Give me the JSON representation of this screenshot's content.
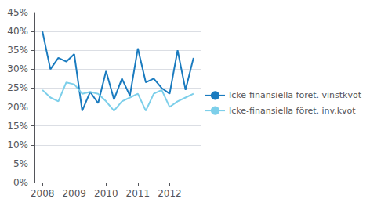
{
  "chart_data": {
    "type": "line",
    "x": [
      2008.0,
      2008.25,
      2008.5,
      2008.75,
      2009.0,
      2009.25,
      2009.5,
      2009.75,
      2010.0,
      2010.25,
      2010.5,
      2010.75,
      2011.0,
      2011.25,
      2011.5,
      2011.75,
      2012.0,
      2012.25,
      2012.5,
      2012.75
    ],
    "series": [
      {
        "name": "Icke-finansiella föret. vinstkvot",
        "color": "#1a7bbf",
        "values": [
          0.4,
          0.3,
          0.33,
          0.32,
          0.34,
          0.19,
          0.24,
          0.21,
          0.295,
          0.22,
          0.275,
          0.23,
          0.355,
          0.265,
          0.275,
          0.25,
          0.235,
          0.35,
          0.245,
          0.33
        ]
      },
      {
        "name": "Icke-finansiella föret. inv.kvot",
        "color": "#7dcfea",
        "values": [
          0.245,
          0.225,
          0.215,
          0.265,
          0.26,
          0.235,
          0.24,
          0.235,
          0.215,
          0.19,
          0.215,
          0.225,
          0.235,
          0.19,
          0.235,
          0.245,
          0.2,
          0.215,
          0.225,
          0.235
        ]
      }
    ],
    "xlim": [
      2007.75,
      2013.0
    ],
    "xticks": [
      2008,
      2009,
      2010,
      2011,
      2012
    ],
    "ylim": [
      0,
      0.45
    ],
    "yticks": [
      {
        "value": 0.0,
        "label": "0%"
      },
      {
        "value": 0.05,
        "label": "5%"
      },
      {
        "value": 0.1,
        "label": "10%"
      },
      {
        "value": 0.15,
        "label": "15%"
      },
      {
        "value": 0.2,
        "label": "20%"
      },
      {
        "value": 0.25,
        "label": "25%"
      },
      {
        "value": 0.3,
        "label": "30%"
      },
      {
        "value": 0.35,
        "label": "35%"
      },
      {
        "value": 0.4,
        "label": "40%"
      },
      {
        "value": 0.45,
        "label": "45%"
      }
    ],
    "grid": true,
    "legend": "right"
  }
}
